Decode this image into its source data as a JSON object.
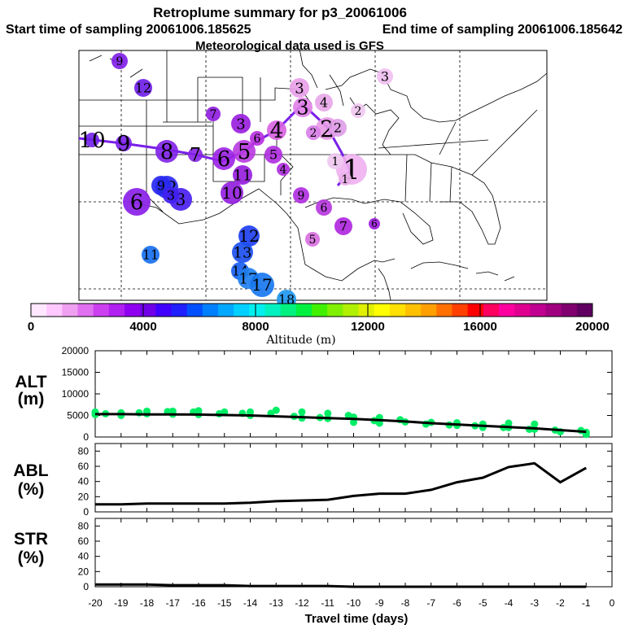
{
  "header": {
    "title": "Retroplume summary for p3_20061006",
    "start_label": "Start time of sampling 20061006.185625",
    "end_label": "End time of sampling 20061006.185642",
    "met_label": "Meteorological data used is GFS"
  },
  "colorbar": {
    "title": "Altitude (m)",
    "ticks": [
      "0",
      "4000",
      "8000",
      "12000",
      "16000",
      "20000"
    ],
    "colors": [
      "#ffe8ff",
      "#ffc8ff",
      "#f0a0f0",
      "#e070f0",
      "#cc40f0",
      "#b020f0",
      "#9000f0",
      "#7000e8",
      "#4000ff",
      "#2020ff",
      "#0050ff",
      "#0080ff",
      "#00a8ff",
      "#00d0ff",
      "#00f0f0",
      "#00f0c0",
      "#00f080",
      "#00f040",
      "#40f000",
      "#80f000",
      "#b0f000",
      "#e0f000",
      "#ffff00",
      "#ffe000",
      "#ffc000",
      "#ffa000",
      "#ff7000",
      "#ff4000",
      "#ff0000",
      "#ff0060",
      "#ff00a0",
      "#e00090",
      "#c00090",
      "#a00080",
      "#800070",
      "#600060"
    ]
  },
  "map_plumes": {
    "trajectory": [
      {
        "day": "1",
        "color": "#f0b0f0"
      },
      {
        "day": "2",
        "color": "#e89ae8"
      },
      {
        "day": "3",
        "color": "#e080e8"
      },
      {
        "day": "4",
        "color": "#d860e0"
      },
      {
        "day": "5",
        "color": "#b838e0"
      },
      {
        "day": "6",
        "color": "#9c22e6"
      },
      {
        "day": "7",
        "color": "#8822e8"
      },
      {
        "day": "8",
        "color": "#8020e8"
      },
      {
        "day": "9",
        "color": "#7a20ea"
      },
      {
        "day": "10",
        "color": "#7020ea"
      }
    ],
    "clusters": [
      {
        "day": "3",
        "color": "#f0c0f0"
      },
      {
        "day": "3",
        "color": "#e8a0e8"
      },
      {
        "day": "4",
        "color": "#e8a8e8"
      },
      {
        "day": "2",
        "color": "#f0c8f0"
      },
      {
        "day": "2",
        "color": "#d880e8"
      },
      {
        "day": "2",
        "color": "#e0a0e8"
      },
      {
        "day": "1",
        "color": "#f0c8f0"
      },
      {
        "day": "1",
        "color": "#e8b0e8"
      },
      {
        "day": "3",
        "color": "#9a20e0"
      },
      {
        "day": "6",
        "color": "#b830e0"
      },
      {
        "day": "5",
        "color": "#b030e0"
      },
      {
        "day": "4",
        "color": "#b030e0"
      },
      {
        "day": "11",
        "color": "#9820e0"
      },
      {
        "day": "10",
        "color": "#9420e0"
      },
      {
        "day": "7",
        "color": "#9020e0"
      },
      {
        "day": "9",
        "color": "#b030e0"
      },
      {
        "day": "6",
        "color": "#b838e0"
      },
      {
        "day": "7",
        "color": "#b028e0"
      },
      {
        "day": "6",
        "color": "#a020e0"
      },
      {
        "day": "5",
        "color": "#d870e0"
      },
      {
        "day": "9",
        "color": "#8020e8"
      },
      {
        "day": "12",
        "color": "#7020e8"
      },
      {
        "day": "12",
        "color": "#2c2cf0"
      },
      {
        "day": "9",
        "color": "#2828f0"
      },
      {
        "day": "3",
        "color": "#4a20f0"
      },
      {
        "day": "3",
        "color": "#4020f0"
      },
      {
        "day": "6",
        "color": "#8a20e8"
      },
      {
        "day": "12",
        "color": "#2040f0"
      },
      {
        "day": "13",
        "color": "#1c50f0"
      },
      {
        "day": "11",
        "color": "#1870f0"
      },
      {
        "day": "14",
        "color": "#1860f0"
      },
      {
        "day": "17",
        "color": "#2080f0"
      },
      {
        "day": "17",
        "color": "#1878f0"
      },
      {
        "day": "18",
        "color": "#2098f0"
      }
    ]
  },
  "chart_data": [
    {
      "type": "scatter",
      "name": "ALT",
      "ylabel": "ALT (m)",
      "ylabel_lines": [
        "ALT",
        "(m)"
      ],
      "ylim": [
        0,
        20000
      ],
      "yticks": [
        0,
        5000,
        10000,
        15000,
        20000
      ],
      "xlim": [
        -20,
        0
      ],
      "xticks": [
        -20,
        -19,
        -18,
        -17,
        -16,
        -15,
        -14,
        -13,
        -12,
        -11,
        -10,
        -9,
        -8,
        -7,
        -6,
        -5,
        -4,
        -3,
        -2,
        -1,
        0
      ],
      "xtick_labels": [
        "-20",
        "-19",
        "-18",
        "-17",
        "-16",
        "-15",
        "-14",
        "-13",
        "-12",
        "-11",
        "-10",
        "-9",
        "-8",
        "-7",
        "-6",
        "-5",
        "-4",
        "-3",
        "-2",
        "-1",
        "0"
      ],
      "line": {
        "x": [
          -20,
          -19,
          -18,
          -17,
          -16,
          -15,
          -14,
          -13,
          -12,
          -11,
          -10,
          -9,
          -8,
          -7,
          -6,
          -5,
          -4,
          -3,
          -2,
          -1
        ],
        "y": [
          5300,
          5300,
          5250,
          5250,
          5200,
          5100,
          5000,
          4800,
          4600,
          4400,
          4200,
          3900,
          3600,
          3200,
          2900,
          2600,
          2300,
          2000,
          1600,
          1200
        ]
      },
      "points": {
        "x": [
          -20,
          -20,
          -19.6,
          -19,
          -19,
          -18.3,
          -18,
          -18,
          -17.2,
          -17,
          -17,
          -16.2,
          -16,
          -16,
          -15.2,
          -15,
          -14.3,
          -14,
          -14,
          -13.2,
          -13,
          -12.3,
          -12,
          -12,
          -11.3,
          -11,
          -11,
          -10.2,
          -10,
          -10,
          -9.2,
          -9,
          -9,
          -8.2,
          -8,
          -7.2,
          -7,
          -6.3,
          -6,
          -6,
          -5.3,
          -5,
          -5,
          -4.2,
          -4,
          -4,
          -3.2,
          -3,
          -3,
          -2.2,
          -2,
          -1.2,
          -1,
          -1
        ],
        "y": [
          5800,
          5200,
          5400,
          5600,
          5000,
          5600,
          6000,
          5400,
          5900,
          6000,
          5300,
          5800,
          6100,
          5200,
          5400,
          5800,
          5500,
          5800,
          5000,
          5500,
          6200,
          4800,
          5800,
          4400,
          4500,
          5500,
          4300,
          5000,
          4600,
          3400,
          3800,
          4500,
          3200,
          4000,
          3500,
          3000,
          3400,
          2800,
          3300,
          2700,
          2600,
          3000,
          2200,
          2200,
          3200,
          2200,
          1800,
          3000,
          1800,
          1600,
          1200,
          1500,
          1100,
          600
        ]
      },
      "point_color": "#00ee66"
    },
    {
      "type": "line",
      "name": "ABL",
      "ylabel": "ABL (%)",
      "ylabel_lines": [
        "ABL",
        "(%)"
      ],
      "ylim": [
        0,
        90
      ],
      "yticks": [
        0,
        20,
        40,
        60,
        80
      ],
      "xlim": [
        -20,
        0
      ],
      "x": [
        -20,
        -19,
        -18,
        -17,
        -16,
        -15,
        -14,
        -13,
        -12,
        -11,
        -10,
        -9,
        -8,
        -7,
        -6,
        -5,
        -4,
        -3,
        -2,
        -1
      ],
      "y": [
        10,
        10,
        11,
        11,
        11,
        11,
        12,
        14,
        15,
        16,
        21,
        24,
        24,
        29,
        39,
        45,
        59,
        64,
        39,
        58
      ]
    },
    {
      "type": "line",
      "name": "STR",
      "ylabel": "STR (%)",
      "ylabel_lines": [
        "STR",
        "(%)"
      ],
      "ylim": [
        0,
        90
      ],
      "yticks": [
        0,
        20,
        40,
        60,
        80
      ],
      "xlim": [
        -20,
        0
      ],
      "xlabel": "Travel time (days)",
      "x": [
        -20,
        -19,
        -18,
        -17,
        -16,
        -15,
        -14,
        -13,
        -12,
        -11,
        -10,
        -9,
        -8,
        -7,
        -6,
        -5,
        -4,
        -3,
        -2,
        -1
      ],
      "y": [
        3,
        3,
        3,
        2,
        2,
        2,
        1,
        1,
        1,
        1,
        0,
        0,
        0,
        0,
        0,
        0,
        0,
        0,
        0,
        0
      ]
    }
  ]
}
